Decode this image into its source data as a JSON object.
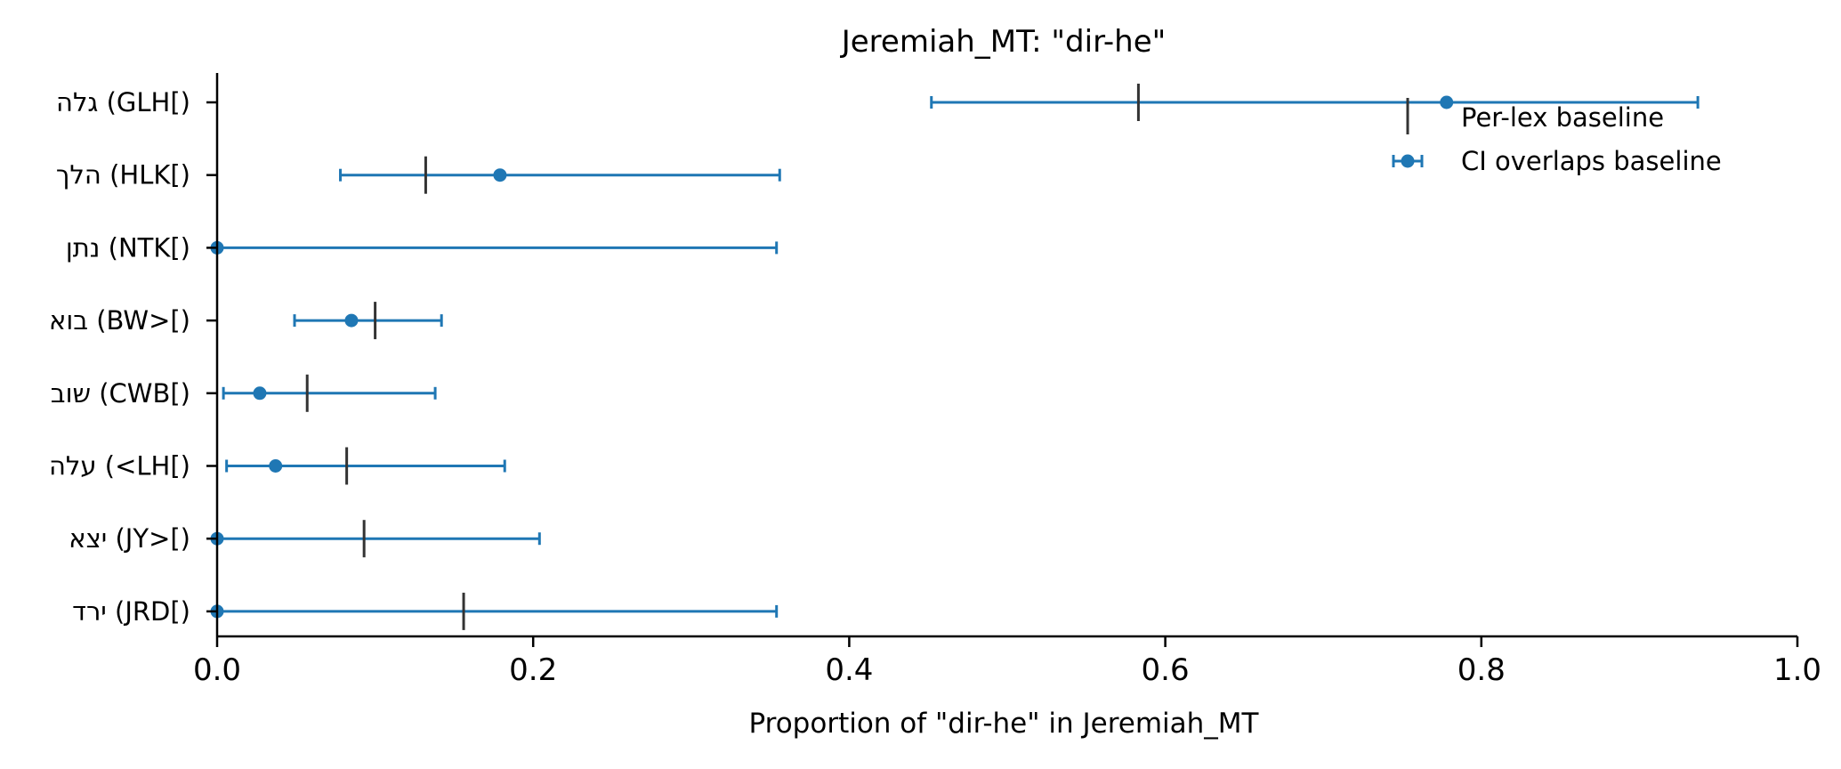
{
  "chart_data": {
    "type": "scatter",
    "title": "Jeremiah_MT: \"dir-he\"",
    "xlabel": "Proportion of \"dir-he\" in Jeremiah_MT",
    "ylabel": "",
    "xlim": [
      0.0,
      1.0
    ],
    "xticks": [
      0.0,
      0.2,
      0.4,
      0.6,
      0.8,
      1.0
    ],
    "xtick_labels": [
      "0.0",
      "0.2",
      "0.4",
      "0.6",
      "0.8",
      "1.0"
    ],
    "categories": [
      "גלה (GLH[)",
      "הלך (HLK[)",
      "נתן (NTK[)",
      "בוא (BW>[)",
      "שוב (CWB[)",
      "עלה (<LH[)",
      "יצא (JY>[)",
      "ירד (JRD[)"
    ],
    "series": [
      {
        "name": "CI overlaps baseline",
        "color": "#1f77b4",
        "marker": "circle",
        "values": [
          0.778,
          0.179,
          0.0,
          0.085,
          0.027,
          0.037,
          0.0,
          0.0
        ],
        "ci_low": [
          0.452,
          0.078,
          0.0,
          0.049,
          0.004,
          0.006,
          0.0,
          0.0
        ],
        "ci_high": [
          0.937,
          0.356,
          0.354,
          0.142,
          0.138,
          0.182,
          0.204,
          0.354
        ]
      },
      {
        "name": "Per-lex baseline",
        "color": "#333333",
        "marker": "vertical-line",
        "values": [
          0.583,
          0.132,
          null,
          0.1,
          0.057,
          0.082,
          0.093,
          0.156
        ]
      }
    ],
    "legend": {
      "position": "top-right",
      "entries": [
        "Per-lex baseline",
        "CI overlaps baseline"
      ]
    },
    "grid": false
  }
}
